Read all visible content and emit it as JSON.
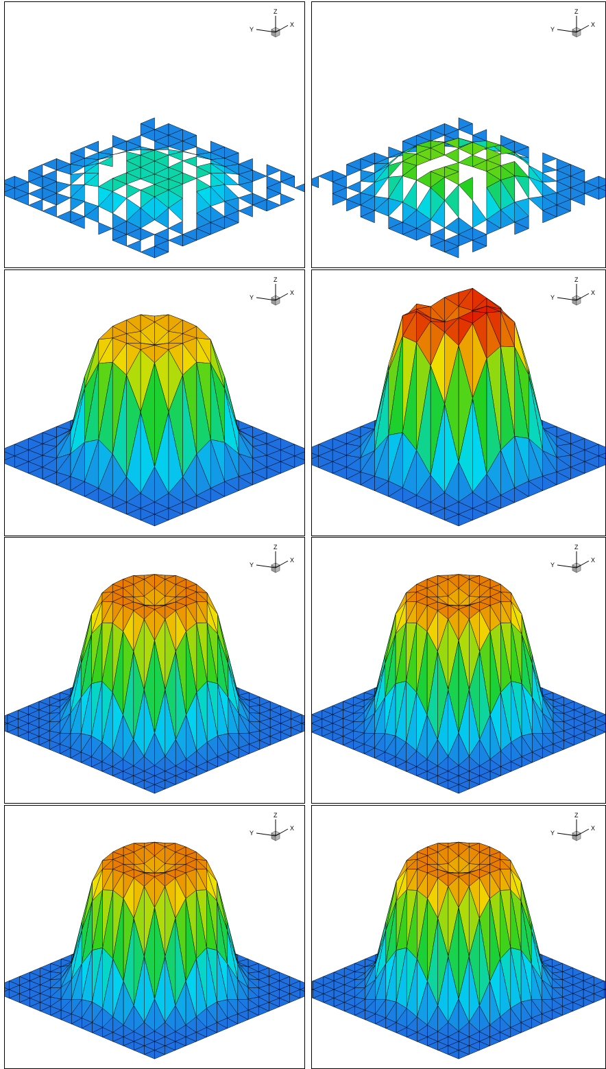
{
  "axis_labels": {
    "x": "X",
    "y": "Y",
    "z": "Z"
  },
  "colors": {
    "frame": "#000000",
    "low": "#1e6fe0",
    "mid_low": "#00d8f0",
    "mid": "#20d020",
    "mid_high": "#f0e000",
    "high": "#e02000",
    "mesh": "#000000"
  },
  "panels": [
    {
      "id": "p1",
      "kind": "sparse-flat",
      "peak": 0.3
    },
    {
      "id": "p2",
      "kind": "sparse-ring",
      "peak": 0.55
    },
    {
      "id": "p3",
      "kind": "coarse-volcano",
      "peak": 0.85
    },
    {
      "id": "p4",
      "kind": "coarse-spiky-volcano",
      "peak": 1.0
    },
    {
      "id": "p5",
      "kind": "smooth-volcano",
      "peak": 0.9
    },
    {
      "id": "p6",
      "kind": "smooth-volcano-cracks",
      "peak": 0.9
    },
    {
      "id": "p7",
      "kind": "smooth-volcano",
      "peak": 0.9
    },
    {
      "id": "p8",
      "kind": "smooth-volcano",
      "peak": 0.9
    }
  ]
}
